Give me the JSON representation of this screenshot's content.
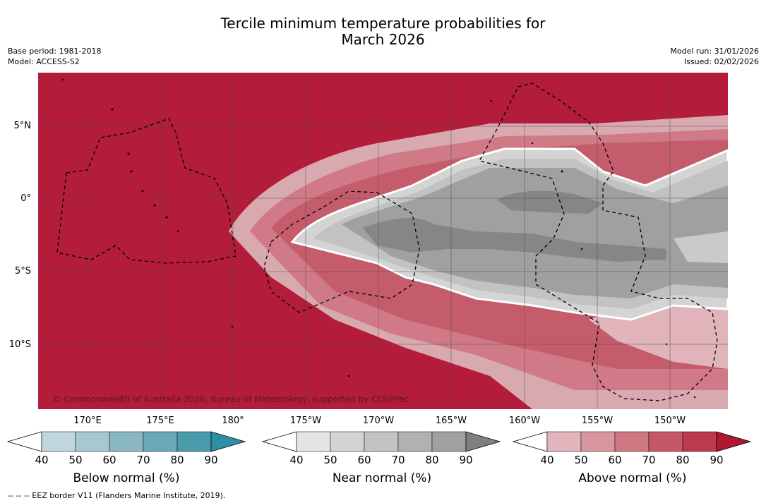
{
  "title_line1": "Tercile minimum temperature probabilities for",
  "title_line2": "March 2026",
  "meta": {
    "base_period": "Base period: 1981-2018",
    "model": "Model: ACCESS-S2",
    "model_run": "Model run: 31/01/2026",
    "issued": "Issued: 02/02/2026"
  },
  "map": {
    "latitude_labels": [
      "5°N",
      "0°",
      "5°S",
      "10°S"
    ],
    "longitude_labels": [
      "170°E",
      "175°E",
      "180°",
      "175°W",
      "170°W",
      "165°W",
      "160°W",
      "155°W",
      "150°W"
    ],
    "copyright": "© Commonwealth of Australia 2026, Bureau of Meteorology, supported by COSPPac",
    "colors": {
      "above_90": "#b31c3a",
      "near_90": "#868686",
      "coast": "#000000"
    }
  },
  "colorbars": [
    {
      "title": "Below normal (%)",
      "ticks": [
        "40",
        "50",
        "60",
        "70",
        "80",
        "90"
      ],
      "colors": [
        "#ffffff",
        "#bfd6dc",
        "#a7c8cf",
        "#89b7c2",
        "#6aa9b7",
        "#4a9cac",
        "#2f8fa2"
      ]
    },
    {
      "title": "Near normal (%)",
      "ticks": [
        "40",
        "50",
        "60",
        "70",
        "80",
        "90"
      ],
      "colors": [
        "#ffffff",
        "#e4e4e4",
        "#d3d3d3",
        "#c3c3c3",
        "#b1b1b1",
        "#a0a0a0",
        "#7f7f7f"
      ]
    },
    {
      "title": "Above normal (%)",
      "ticks": [
        "40",
        "50",
        "60",
        "70",
        "80",
        "90"
      ],
      "colors": [
        "#ffffff",
        "#e2b4bb",
        "#d8969f",
        "#cf7783",
        "#c55767",
        "#bb3a4d",
        "#b01733"
      ]
    }
  ],
  "footnote": "-- -- -- EEZ border V11 (Flanders Marine Institute, 2019)."
}
